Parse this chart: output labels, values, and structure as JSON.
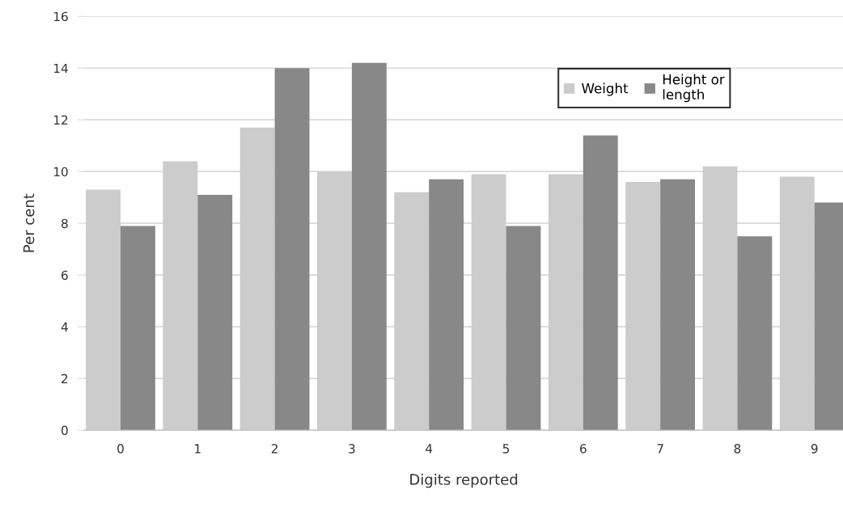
{
  "chart_data": {
    "type": "bar",
    "xlabel": "Digits reported",
    "ylabel": "Per cent",
    "categories": [
      "0",
      "1",
      "2",
      "3",
      "4",
      "5",
      "6",
      "7",
      "8",
      "9"
    ],
    "series": [
      {
        "name": "Weight",
        "color": "#cccccc",
        "values": [
          9.3,
          10.4,
          11.7,
          10.0,
          9.2,
          9.9,
          9.9,
          9.6,
          10.2,
          9.8
        ]
      },
      {
        "name": "Height or\nlength",
        "color": "#888888",
        "values": [
          7.9,
          9.1,
          14.0,
          14.2,
          9.7,
          7.9,
          11.4,
          9.7,
          7.5,
          8.8
        ]
      }
    ],
    "ylim": [
      0,
      16
    ],
    "yticks": [
      0,
      2,
      4,
      6,
      8,
      10,
      12,
      14,
      16
    ],
    "grid": "y",
    "legend": "top right"
  }
}
